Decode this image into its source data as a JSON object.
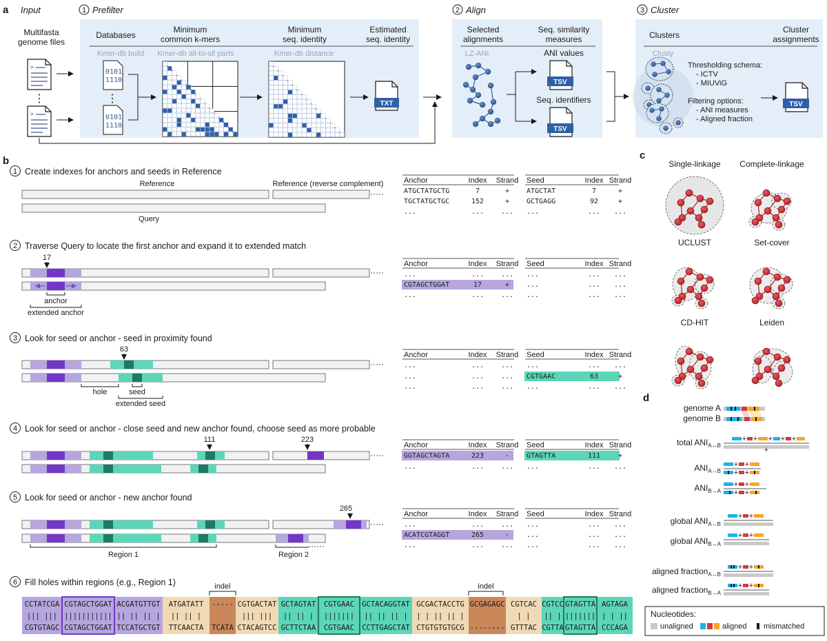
{
  "panel_a": {
    "label": "a",
    "input_header": "Input",
    "input_text": [
      "Multifasta",
      "genome files"
    ],
    "prefilter_header": "Prefilter",
    "align_header": "Align",
    "cluster_header": "Cluster",
    "step_numbers": [
      "1",
      "2",
      "3"
    ],
    "databases": "Databases",
    "min_kmers": [
      "Minimum",
      "common k-mers"
    ],
    "min_identity": [
      "Minimum",
      "seq. identity"
    ],
    "est_identity": [
      "Estimated",
      "seq. identity"
    ],
    "kmer_build": "Kmer-db build",
    "kmer_all": "Kmer-db all-to-all parts",
    "kmer_dist": "Kmer-db distance",
    "binary": [
      "0101",
      "1110"
    ],
    "ellipsis": "⋮",
    "txt_label": "TXT",
    "selected_alignments": [
      "Selected",
      "alignments"
    ],
    "similarity_measures": [
      "Seq. similarity",
      "measures"
    ],
    "lz_ani": "LZ-ANI",
    "ani_values": "ANI values",
    "seq_identifiers": "Seq. identifiers",
    "tsv_label": "TSV",
    "clusters": "Clusters",
    "cluster_assignments": [
      "Cluster",
      "assignments"
    ],
    "clusty": "Clusty",
    "thresholding": [
      "Thresholding schema:",
      "- ICTV",
      "- MIUViG"
    ],
    "filtering": [
      "Filtering options:",
      "- ANI measures",
      "- Aligned fraction"
    ]
  },
  "panel_b": {
    "label": "b",
    "steps": [
      {
        "num": "1",
        "text": "Create indexes for anchors and seeds in Reference"
      },
      {
        "num": "2",
        "text": "Traverse Query to locate the first anchor and expand it to extended match"
      },
      {
        "num": "3",
        "text": "Look for seed or anchor - seed in proximity found"
      },
      {
        "num": "4",
        "text": "Look for seed or anchor - close seed and new anchor found, choose seed as more probable"
      },
      {
        "num": "5",
        "text": "Look for seed or anchor - new anchor found"
      },
      {
        "num": "6",
        "text": "Fill holes within regions (e.g., Region 1)"
      }
    ],
    "reference": "Reference",
    "reference_rc": "Reference (reverse complement)",
    "query": "Query",
    "anchor": "anchor",
    "extended_anchor": "extended anchor",
    "hole": "hole",
    "seed": "seed",
    "extended_seed": "extended seed",
    "region1": "Region 1",
    "region2": "Region 2",
    "indel": "indel",
    "pos": {
      "p17": "17",
      "p63": "63",
      "p111": "111",
      "p223": "223",
      "p265": "265"
    },
    "cols_anchor": [
      "Anchor",
      "Index",
      "Strand"
    ],
    "cols_seed": [
      "Seed",
      "Index",
      "Strand"
    ],
    "dots": "...",
    "t1_anchor": [
      [
        "ATGCTATGCTG",
        "7",
        "+"
      ],
      [
        "TGCTATGCTGC",
        "152",
        "+"
      ]
    ],
    "t1_seed": [
      [
        "ATGCTAT",
        "7",
        "+"
      ],
      [
        "GCTGAGG",
        "92",
        "+"
      ]
    ],
    "t2_anchor": [
      "CGTAGCTGGAT",
      "17",
      "+"
    ],
    "t3_seed": [
      "CGTGAAC",
      "63",
      "+"
    ],
    "t4_anchor": [
      "GGTAGCTAGTA",
      "223",
      "-"
    ],
    "t4_seed": [
      "GTAGTTA",
      "111",
      "+"
    ],
    "t5_anchor": [
      "ACATCGTAGGT",
      "265",
      "-"
    ],
    "seq_top": [
      "CCTATCGA",
      "CGTAGCTGGAT",
      "ACGATGTTGT",
      "ATGATATT",
      "-----",
      "CGTGACTAT",
      "GCTAGTAT",
      "CGTGAAC",
      "GCTACAGGTAT",
      "GCGACTACCTG",
      "GCGAGAGC",
      "CGTCAC",
      "CGTCC",
      "GTAGTTA",
      "AGTAGA"
    ],
    "seq_mid": [
      "||| |||",
      "|||||||||||",
      "|| || || |",
      "|| ||  |",
      "",
      "||| |||  ",
      "|| ||  |",
      "|||||||",
      "|| || ||  |",
      "| | || || |",
      "",
      "  |  |",
      "|| |",
      "|||||||",
      "| | ||"
    ],
    "seq_bot": [
      "CGTGTAGC",
      "CGTAGCTGGAT",
      "TCCATGCTGT",
      "TTCAACTA",
      "TCATA",
      "CTACAGTCC",
      "GCTTCTAA",
      "CGTGAAC",
      "CCTTGAGCTAT",
      "CTGTGTGTGCG",
      "--------",
      "GTTTAC",
      "CGTTA",
      "GTAGTTA",
      "CCCAGA"
    ]
  },
  "panel_c": {
    "label": "c",
    "methods": [
      "Single-linkage",
      "Complete-linkage",
      "UCLUST",
      "Set-cover",
      "CD-HIT",
      "Leiden"
    ]
  },
  "panel_d": {
    "label": "d",
    "genome_a": "genome A",
    "genome_b": "genome B",
    "total_ani": "total ANI",
    "sub_ab_tot": "A↔B",
    "ani": "ANI",
    "sub_ab": "A→B",
    "sub_ba": "B→A",
    "global_ani": "global ANI",
    "aligned_fraction": "aligned fraction",
    "nucleotides": "Nucleotides:",
    "unaligned": "unaligned",
    "aligned": "aligned",
    "mismatched": "mismatched",
    "plus": "+",
    "colors": {
      "blue": "#1ab4e8",
      "red": "#d9363e",
      "orange": "#f5a623",
      "grey": "#c9c9c9"
    }
  }
}
